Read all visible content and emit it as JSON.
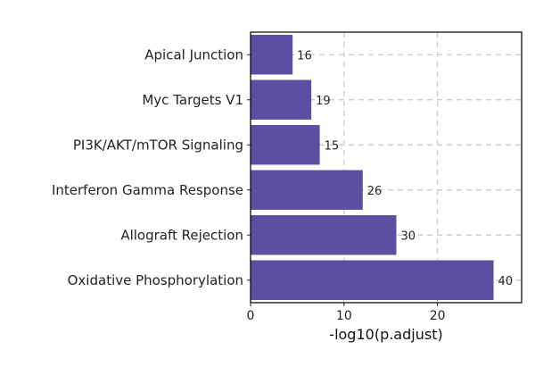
{
  "chart_data": {
    "type": "bar",
    "orientation": "horizontal",
    "categories": [
      "Apical Junction",
      "Myc Targets V1",
      "PI3K/AKT/mTOR Signaling",
      "Interferon Gamma Response",
      "Allograft Rejection",
      "Oxidative Phosphorylation"
    ],
    "values": [
      4.5,
      6.5,
      7.4,
      12.0,
      15.6,
      26.0
    ],
    "labels": [
      "16",
      "19",
      "15",
      "26",
      "30",
      "40"
    ],
    "xlabel": "-log10(p.adjust)",
    "ylabel": "",
    "title": "",
    "xlim": [
      0,
      29
    ],
    "xticks": [
      0,
      10,
      20
    ],
    "grid": "dashed",
    "legend": "none",
    "bar_color": "#5c4fa3"
  }
}
